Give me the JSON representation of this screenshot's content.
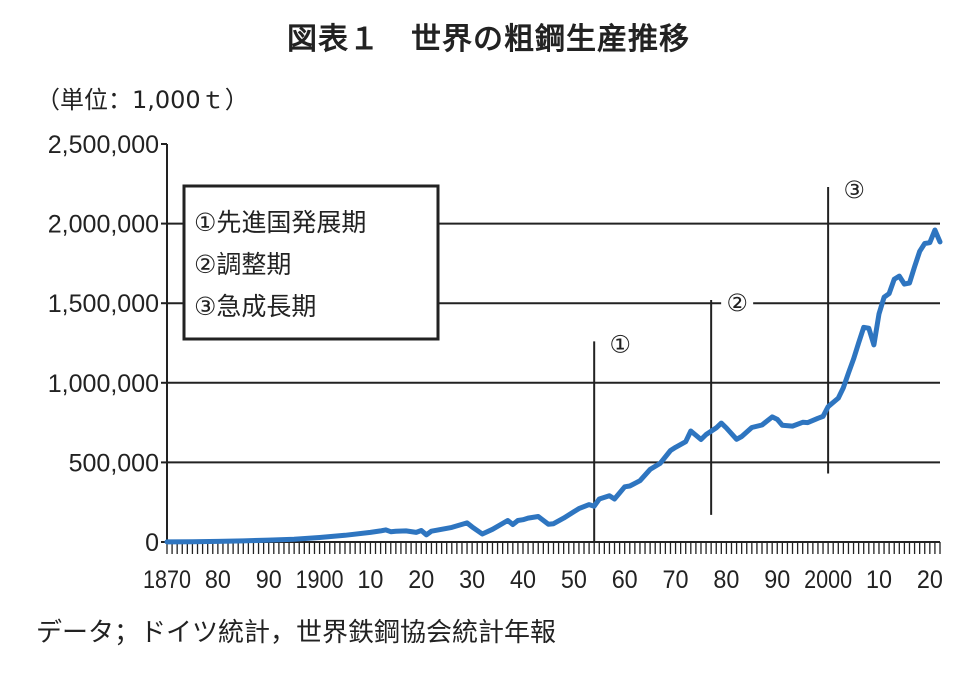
{
  "chart_data": {
    "type": "line",
    "title": "図表１　世界の粗鋼生産推移",
    "unit_label": "（単位：1,000ｔ）",
    "source": "データ；ドイツ統計，世界鉄鋼協会統計年報",
    "xlabel": "",
    "ylabel": "",
    "xlim": [
      1870,
      2022
    ],
    "ylim": [
      0,
      2500000
    ],
    "grid": true,
    "y_ticks": [
      0,
      500000,
      1000000,
      1500000,
      2000000,
      2500000
    ],
    "y_tick_labels": [
      "0",
      "500,000",
      "1,000,000",
      "1,500,000",
      "2,000,000",
      "2,500,000"
    ],
    "x_ticks": [
      1870,
      1880,
      1890,
      1900,
      1910,
      1920,
      1930,
      1940,
      1950,
      1960,
      1970,
      1980,
      1990,
      2000,
      2010,
      2020
    ],
    "x_tick_labels": [
      "1870",
      "80",
      "90",
      "1900",
      "10",
      "20",
      "30",
      "40",
      "50",
      "60",
      "70",
      "80",
      "90",
      "2000",
      "10",
      "20"
    ],
    "legend": {
      "placement": "top-left",
      "entries": [
        "①先進国発展期",
        "②調整期",
        "③急成長期"
      ]
    },
    "series": [
      {
        "name": "世界の粗鋼生産",
        "color": "#2e75c0",
        "x": [
          1870,
          1875,
          1880,
          1885,
          1890,
          1895,
          1900,
          1905,
          1910,
          1912,
          1913,
          1914,
          1915,
          1917,
          1919,
          1920,
          1921,
          1922,
          1924,
          1926,
          1929,
          1930,
          1932,
          1934,
          1937,
          1938,
          1939,
          1940,
          1941,
          1943,
          1945,
          1946,
          1948,
          1950,
          1951,
          1953,
          1954,
          1955,
          1957,
          1958,
          1960,
          1961,
          1963,
          1965,
          1967,
          1969,
          1970,
          1972,
          1973,
          1975,
          1976,
          1978,
          1979,
          1980,
          1982,
          1983,
          1985,
          1987,
          1989,
          1990,
          1991,
          1993,
          1995,
          1996,
          1998,
          1999,
          2000,
          2002,
          2003,
          2004,
          2005,
          2006,
          2007,
          2008,
          2009,
          2010,
          2011,
          2012,
          2013,
          2014,
          2015,
          2016,
          2017,
          2018,
          2019,
          2020,
          2021,
          2022
        ],
        "values": [
          500,
          2000,
          4000,
          7000,
          12000,
          17000,
          28000,
          42000,
          60000,
          70000,
          76000,
          65000,
          68000,
          70000,
          60000,
          72000,
          45000,
          68000,
          80000,
          92000,
          120000,
          95000,
          50000,
          80000,
          135000,
          110000,
          135000,
          140000,
          150000,
          160000,
          112000,
          115000,
          150000,
          190000,
          210000,
          235000,
          225000,
          270000,
          290000,
          270000,
          347000,
          352000,
          385000,
          456000,
          495000,
          575000,
          595000,
          630000,
          697000,
          644000,
          675000,
          717000,
          747000,
          716000,
          645000,
          663000,
          719000,
          735000,
          786000,
          770000,
          733000,
          728000,
          752000,
          750000,
          777000,
          789000,
          850000,
          904000,
          970000,
          1062000,
          1148000,
          1250000,
          1348000,
          1343000,
          1238000,
          1433000,
          1538000,
          1560000,
          1650000,
          1670000,
          1620000,
          1627000,
          1730000,
          1826000,
          1875000,
          1880000,
          1960000,
          1885000
        ]
      }
    ],
    "period_markers": [
      {
        "label": "①",
        "year": 1954,
        "y_range": [
          0,
          1260000
        ]
      },
      {
        "label": "②",
        "year": 1977,
        "y_range": [
          170000,
          1520000
        ]
      },
      {
        "label": "③",
        "year": 2000,
        "y_range": [
          430000,
          2230000
        ]
      }
    ]
  }
}
